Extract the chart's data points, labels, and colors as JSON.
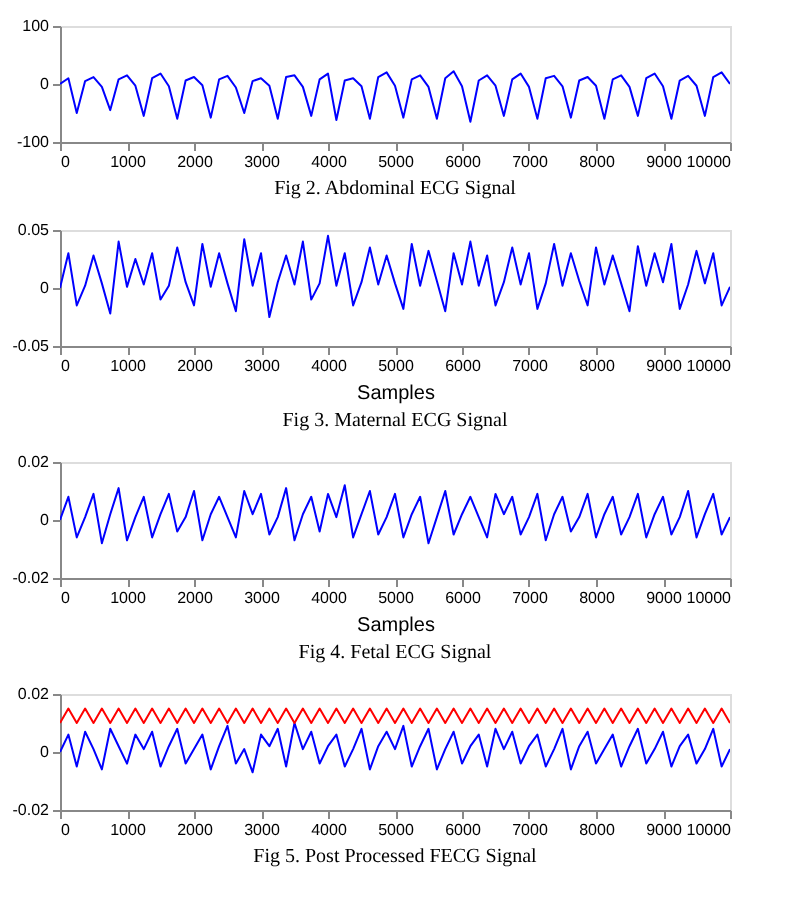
{
  "chart_data": [
    {
      "type": "line",
      "annotations": [
        "Fig 2. Abdominal ECG Signal"
      ],
      "xlim": [
        0,
        10000
      ],
      "xticks": [
        0,
        1000,
        2000,
        3000,
        4000,
        5000,
        6000,
        7000,
        8000,
        9000,
        10000
      ],
      "ylim": [
        -100,
        100
      ],
      "yticks": [
        -100,
        0,
        100
      ],
      "x": [
        0,
        125,
        250,
        375,
        500,
        625,
        750,
        875,
        1000,
        1125,
        1250,
        1375,
        1500,
        1625,
        1750,
        1875,
        2000,
        2125,
        2250,
        2375,
        2500,
        2625,
        2750,
        2875,
        3000,
        3125,
        3250,
        3375,
        3500,
        3625,
        3750,
        3875,
        4000,
        4125,
        4250,
        4375,
        4500,
        4625,
        4750,
        4875,
        5000,
        5125,
        5250,
        5375,
        5500,
        5625,
        5750,
        5875,
        6000,
        6125,
        6250,
        6375,
        6500,
        6625,
        6750,
        6875,
        7000,
        7125,
        7250,
        7375,
        7500,
        7625,
        7750,
        7875,
        8000,
        8125,
        8250,
        8375,
        8500,
        8625,
        8750,
        8875,
        9000,
        9125,
        9250,
        9375,
        9500,
        9625,
        9750,
        9875,
        10000
      ],
      "series": [
        {
          "color": "#0000ff",
          "values": [
            0,
            10,
            -50,
            5,
            12,
            -5,
            -45,
            8,
            15,
            -3,
            -55,
            10,
            18,
            -4,
            -60,
            6,
            12,
            -2,
            -58,
            8,
            14,
            -6,
            -50,
            5,
            10,
            -3,
            -60,
            12,
            15,
            -5,
            -55,
            8,
            18,
            -62,
            6,
            10,
            -4,
            -60,
            12,
            20,
            -3,
            -58,
            8,
            15,
            -5,
            -60,
            10,
            22,
            -4,
            -65,
            6,
            15,
            -3,
            -55,
            8,
            18,
            -5,
            -60,
            10,
            14,
            -4,
            -58,
            6,
            12,
            -3,
            -60,
            8,
            15,
            -5,
            -55,
            10,
            18,
            -4,
            -60,
            6,
            14,
            -3,
            -55,
            12,
            20,
            0
          ]
        }
      ]
    },
    {
      "type": "line",
      "xlabel": "Samples",
      "annotations": [
        "Fig 3. Maternal ECG Signal"
      ],
      "xlim": [
        0,
        10000
      ],
      "xticks": [
        0,
        1000,
        2000,
        3000,
        4000,
        5000,
        6000,
        7000,
        8000,
        9000,
        10000
      ],
      "ylim": [
        -0.05,
        0.05
      ],
      "yticks": [
        -0.05,
        0,
        0.05
      ],
      "x": [
        0,
        125,
        250,
        375,
        500,
        625,
        750,
        875,
        1000,
        1125,
        1250,
        1375,
        1500,
        1625,
        1750,
        1875,
        2000,
        2125,
        2250,
        2375,
        2500,
        2625,
        2750,
        2875,
        3000,
        3125,
        3250,
        3375,
        3500,
        3625,
        3750,
        3875,
        4000,
        4125,
        4250,
        4375,
        4500,
        4625,
        4750,
        4875,
        5000,
        5125,
        5250,
        5375,
        5500,
        5625,
        5750,
        5875,
        6000,
        6125,
        6250,
        6375,
        6500,
        6625,
        6750,
        6875,
        7000,
        7125,
        7250,
        7375,
        7500,
        7625,
        7750,
        7875,
        8000,
        8125,
        8250,
        8375,
        8500,
        8625,
        8750,
        8875,
        9000,
        9125,
        9250,
        9375,
        9500,
        9625,
        9750,
        9875,
        10000
      ],
      "series": [
        {
          "color": "#0000ff",
          "values": [
            0,
            0.03,
            -0.015,
            0.002,
            0.028,
            0.004,
            -0.022,
            0.04,
            0.001,
            0.025,
            0.003,
            0.03,
            -0.01,
            0.002,
            0.035,
            0.005,
            -0.015,
            0.038,
            0.001,
            0.03,
            0.004,
            -0.02,
            0.042,
            0.002,
            0.03,
            -0.025,
            0.005,
            0.028,
            0.003,
            0.04,
            -0.01,
            0.004,
            0.045,
            0.002,
            0.03,
            -0.015,
            0.005,
            0.035,
            0.003,
            0.028,
            0.004,
            -0.018,
            0.038,
            0.002,
            0.032,
            0.006,
            -0.02,
            0.03,
            0.003,
            0.04,
            0.002,
            0.028,
            -0.015,
            0.005,
            0.035,
            0.003,
            0.03,
            -0.018,
            0.004,
            0.038,
            0.002,
            0.03,
            0.006,
            -0.015,
            0.035,
            0.003,
            0.028,
            0.004,
            -0.02,
            0.036,
            0.002,
            0.03,
            0.005,
            0.038,
            -0.018,
            0.003,
            0.032,
            0.004,
            0.03,
            -0.015,
            0.001
          ]
        }
      ]
    },
    {
      "type": "line",
      "xlabel": "Samples",
      "annotations": [
        "Fig 4. Fetal ECG Signal"
      ],
      "xlim": [
        0,
        10000
      ],
      "xticks": [
        0,
        1000,
        2000,
        3000,
        4000,
        5000,
        6000,
        7000,
        8000,
        9000,
        10000
      ],
      "ylim": [
        -0.02,
        0.02
      ],
      "yticks": [
        -0.02,
        0,
        0.02
      ],
      "x": [
        0,
        125,
        250,
        375,
        500,
        625,
        750,
        875,
        1000,
        1125,
        1250,
        1375,
        1500,
        1625,
        1750,
        1875,
        2000,
        2125,
        2250,
        2375,
        2500,
        2625,
        2750,
        2875,
        3000,
        3125,
        3250,
        3375,
        3500,
        3625,
        3750,
        3875,
        4000,
        4125,
        4250,
        4375,
        4500,
        4625,
        4750,
        4875,
        5000,
        5125,
        5250,
        5375,
        5500,
        5625,
        5750,
        5875,
        6000,
        6125,
        6250,
        6375,
        6500,
        6625,
        6750,
        6875,
        7000,
        7125,
        7250,
        7375,
        7500,
        7625,
        7750,
        7875,
        8000,
        8125,
        8250,
        8375,
        8500,
        8625,
        8750,
        8875,
        9000,
        9125,
        9250,
        9375,
        9500,
        9625,
        9750,
        9875,
        10000
      ],
      "series": [
        {
          "color": "#0000ff",
          "values": [
            0,
            0.008,
            -0.006,
            0.001,
            0.009,
            -0.008,
            0.002,
            0.011,
            -0.007,
            0.001,
            0.008,
            -0.006,
            0.002,
            0.009,
            -0.004,
            0.001,
            0.01,
            -0.007,
            0.002,
            0.008,
            0.001,
            -0.006,
            0.01,
            0.002,
            0.009,
            -0.005,
            0.001,
            0.011,
            -0.007,
            0.002,
            0.008,
            -0.004,
            0.009,
            0.001,
            0.012,
            -0.006,
            0.002,
            0.01,
            -0.005,
            0.001,
            0.009,
            -0.006,
            0.002,
            0.008,
            -0.008,
            0.001,
            0.01,
            -0.005,
            0.002,
            0.008,
            0.001,
            -0.006,
            0.009,
            0.002,
            0.008,
            -0.005,
            0.001,
            0.009,
            -0.007,
            0.002,
            0.008,
            -0.004,
            0.001,
            0.009,
            -0.006,
            0.002,
            0.008,
            -0.005,
            0.001,
            0.009,
            -0.006,
            0.002,
            0.008,
            -0.005,
            0.001,
            0.01,
            -0.006,
            0.002,
            0.009,
            -0.005,
            0.001
          ]
        }
      ]
    },
    {
      "type": "line",
      "annotations": [
        "Fig 5. Post Processed FECG Signal"
      ],
      "xlim": [
        0,
        10000
      ],
      "xticks": [
        0,
        1000,
        2000,
        3000,
        4000,
        5000,
        6000,
        7000,
        8000,
        9000,
        10000
      ],
      "ylim": [
        -0.02,
        0.02
      ],
      "yticks": [
        -0.02,
        0,
        0.02
      ],
      "x": [
        0,
        125,
        250,
        375,
        500,
        625,
        750,
        875,
        1000,
        1125,
        1250,
        1375,
        1500,
        1625,
        1750,
        1875,
        2000,
        2125,
        2250,
        2375,
        2500,
        2625,
        2750,
        2875,
        3000,
        3125,
        3250,
        3375,
        3500,
        3625,
        3750,
        3875,
        4000,
        4125,
        4250,
        4375,
        4500,
        4625,
        4750,
        4875,
        5000,
        5125,
        5250,
        5375,
        5500,
        5625,
        5750,
        5875,
        6000,
        6125,
        6250,
        6375,
        6500,
        6625,
        6750,
        6875,
        7000,
        7125,
        7250,
        7375,
        7500,
        7625,
        7750,
        7875,
        8000,
        8125,
        8250,
        8375,
        8500,
        8625,
        8750,
        8875,
        9000,
        9125,
        9250,
        9375,
        9500,
        9625,
        9750,
        9875,
        10000
      ],
      "series": [
        {
          "color": "#0000ff",
          "values": [
            0,
            0.006,
            -0.005,
            0.007,
            0.001,
            -0.006,
            0.008,
            0.002,
            -0.004,
            0.006,
            0.001,
            0.007,
            -0.005,
            0.002,
            0.008,
            -0.004,
            0.001,
            0.006,
            -0.006,
            0.002,
            0.009,
            -0.004,
            0.001,
            -0.007,
            0.006,
            0.002,
            0.008,
            -0.005,
            0.01,
            0.001,
            0.007,
            -0.004,
            0.002,
            0.006,
            -0.005,
            0.001,
            0.008,
            -0.006,
            0.002,
            0.007,
            0.001,
            0.009,
            -0.005,
            0.002,
            0.008,
            -0.006,
            0.001,
            0.007,
            -0.004,
            0.002,
            0.006,
            -0.005,
            0.008,
            0.001,
            0.007,
            -0.004,
            0.002,
            0.006,
            -0.005,
            0.001,
            0.008,
            -0.006,
            0.002,
            0.007,
            -0.004,
            0.001,
            0.006,
            -0.005,
            0.002,
            0.008,
            -0.004,
            0.001,
            0.007,
            -0.005,
            0.002,
            0.006,
            -0.004,
            0.001,
            0.008,
            -0.005,
            0.001
          ]
        },
        {
          "color": "#ff0000",
          "values": [
            0.01,
            0.015,
            0.01,
            0.015,
            0.01,
            0.015,
            0.01,
            0.015,
            0.01,
            0.015,
            0.01,
            0.015,
            0.01,
            0.015,
            0.01,
            0.015,
            0.01,
            0.015,
            0.01,
            0.015,
            0.01,
            0.015,
            0.01,
            0.015,
            0.01,
            0.015,
            0.01,
            0.015,
            0.01,
            0.015,
            0.01,
            0.015,
            0.01,
            0.015,
            0.01,
            0.015,
            0.01,
            0.015,
            0.01,
            0.015,
            0.01,
            0.015,
            0.01,
            0.015,
            0.01,
            0.015,
            0.01,
            0.015,
            0.01,
            0.015,
            0.01,
            0.015,
            0.01,
            0.015,
            0.01,
            0.015,
            0.01,
            0.015,
            0.01,
            0.015,
            0.01,
            0.015,
            0.01,
            0.015,
            0.01,
            0.015,
            0.01,
            0.015,
            0.01,
            0.015,
            0.01,
            0.015,
            0.01,
            0.015,
            0.01,
            0.015,
            0.01,
            0.015,
            0.01,
            0.015,
            0.01
          ]
        }
      ]
    }
  ]
}
